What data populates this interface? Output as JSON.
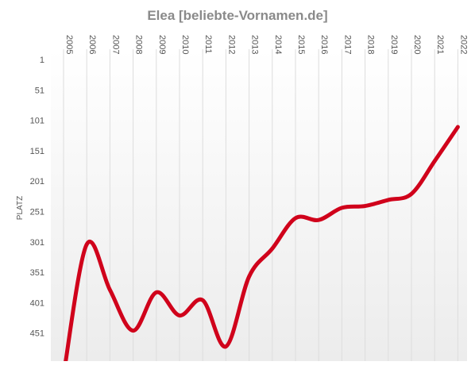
{
  "chart_data": {
    "type": "line",
    "title": "Elea [beliebte-Vornamen.de]",
    "ylabel": "PLATZ",
    "xlabel": "",
    "y_reversed": true,
    "ylim": [
      1,
      520
    ],
    "y_ticks": [
      1,
      51,
      101,
      151,
      201,
      251,
      301,
      351,
      401,
      451
    ],
    "grid": "vertical",
    "line_color": "#d0021b",
    "x": [
      "2005",
      "2006",
      "2007",
      "2008",
      "2009",
      "2010",
      "2011",
      "2012",
      "2013",
      "2014",
      "2015",
      "2016",
      "2017",
      "2018",
      "2019",
      "2020",
      "2021",
      "2022"
    ],
    "series": [
      {
        "values": [
          520,
          305,
          380,
          447,
          384,
          422,
          397,
          473,
          358,
          312,
          262,
          265,
          245,
          242,
          232,
          222,
          168,
          112
        ]
      }
    ]
  }
}
